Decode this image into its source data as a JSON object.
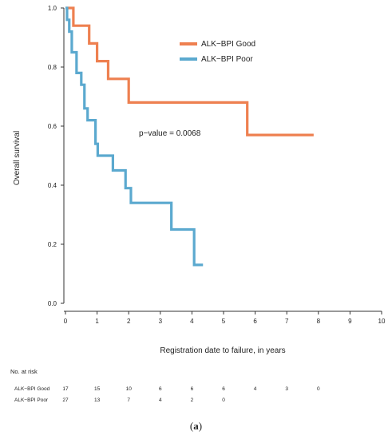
{
  "chart_data": {
    "type": "line",
    "xlabel": "Registration date to failure, in years",
    "ylabel": "Overall survival",
    "xlim": [
      0,
      10
    ],
    "ylim": [
      0,
      1
    ],
    "x_ticks": [
      "0",
      "1",
      "2",
      "3",
      "4",
      "5",
      "6",
      "7",
      "8",
      "9",
      "10"
    ],
    "y_ticks": [
      "0.0",
      "0.2",
      "0.4",
      "0.6",
      "0.8",
      "1.0"
    ],
    "annotation": "p−value = 0.0068",
    "legend_position": "top-right",
    "series": [
      {
        "name": "ALK−BPI Good",
        "color": "#ee8050",
        "steps": [
          [
            0,
            1.0
          ],
          [
            0.25,
            0.94
          ],
          [
            0.75,
            0.88
          ],
          [
            1.0,
            0.82
          ],
          [
            1.35,
            0.76
          ],
          [
            2.0,
            0.68
          ],
          [
            5.75,
            0.57
          ],
          [
            7.85,
            0.57
          ]
        ]
      },
      {
        "name": "ALK−BPI Poor",
        "color": "#5ba9cf",
        "steps": [
          [
            0,
            1.0
          ],
          [
            0.05,
            0.96
          ],
          [
            0.12,
            0.92
          ],
          [
            0.2,
            0.85
          ],
          [
            0.35,
            0.78
          ],
          [
            0.5,
            0.74
          ],
          [
            0.6,
            0.66
          ],
          [
            0.7,
            0.62
          ],
          [
            0.95,
            0.54
          ],
          [
            1.02,
            0.5
          ],
          [
            1.5,
            0.45
          ],
          [
            1.9,
            0.39
          ],
          [
            2.07,
            0.34
          ],
          [
            3.35,
            0.25
          ],
          [
            4.07,
            0.13
          ],
          [
            4.35,
            0.13
          ]
        ]
      }
    ],
    "risk_table": {
      "title": "No. at risk",
      "x": [
        0,
        1,
        2,
        3,
        4,
        5,
        6,
        7,
        8
      ],
      "rows": [
        {
          "label": "ALK−BPI Good",
          "values": [
            "17",
            "15",
            "10",
            "6",
            "6",
            "6",
            "4",
            "3",
            "0"
          ]
        },
        {
          "label": "ALK−BPI Poor",
          "values": [
            "27",
            "13",
            "7",
            "4",
            "2",
            "0"
          ]
        }
      ]
    }
  },
  "caption": {
    "label": "a"
  }
}
